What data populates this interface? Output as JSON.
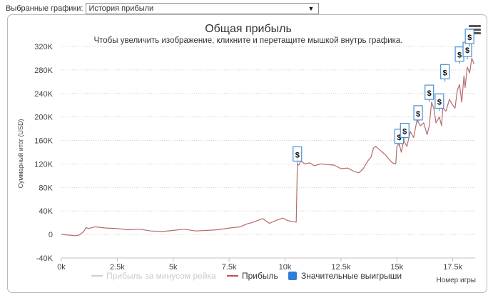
{
  "selector": {
    "label": "Выбранные графики:",
    "value": "История прибыли"
  },
  "chart_data": {
    "type": "line",
    "title": "Общая прибыль",
    "subtitle": "Чтобы увеличить изображение, кликните и перетащите мышкой внутрь графика.",
    "ylabel": "Суммарный итог (USD)",
    "xlabel": "Номер игры",
    "xlim": [
      0,
      18500
    ],
    "ylim": [
      -40000,
      320000
    ],
    "x_ticks": [
      0,
      2500,
      5000,
      7500,
      10000,
      12500,
      15000,
      17500
    ],
    "x_tick_labels": [
      "0k",
      "2.5k",
      "5k",
      "7.5k",
      "10k",
      "12.5k",
      "15k",
      "17.5k"
    ],
    "y_ticks": [
      -40000,
      0,
      40000,
      80000,
      120000,
      160000,
      200000,
      240000,
      280000,
      320000
    ],
    "y_tick_labels": [
      "-40K",
      "0",
      "40K",
      "80K",
      "120K",
      "160K",
      "200K",
      "240K",
      "280K",
      "320K"
    ],
    "grid": true,
    "legend_position": "bottom",
    "legend": [
      {
        "name": "Прибыль за минусом рейка",
        "color": "#cccccc",
        "hidden": true
      },
      {
        "name": "Прибыль",
        "color": "#c0504d"
      },
      {
        "name": "Значительные выигрыши",
        "color": "#2f7ed8"
      }
    ],
    "series": [
      {
        "name": "Прибыль",
        "color": "#b76b6b",
        "x": [
          0,
          300,
          600,
          800,
          1000,
          1100,
          1200,
          1500,
          2000,
          2500,
          3000,
          3500,
          4000,
          4500,
          5000,
          5500,
          6000,
          6500,
          7000,
          7500,
          8000,
          8300,
          8500,
          9000,
          9300,
          9600,
          9900,
          10100,
          10300,
          10500,
          10550,
          10620,
          10700,
          10900,
          11100,
          11300,
          11600,
          11900,
          12200,
          12500,
          12800,
          13100,
          13300,
          13500,
          13700,
          13850,
          13950,
          14050,
          14200,
          14350,
          14500,
          14650,
          14800,
          14950,
          15000,
          15100,
          15200,
          15300,
          15450,
          15600,
          15750,
          15900,
          16050,
          16200,
          16350,
          16450,
          16550,
          16650,
          16750,
          16900,
          17000,
          17050,
          17200,
          17350,
          17500,
          17600,
          17700,
          17800,
          17900,
          18000,
          18050,
          18150,
          18250,
          18350,
          18450
        ],
        "y": [
          0,
          -1000,
          -2000,
          -1000,
          5000,
          12000,
          10000,
          13000,
          11000,
          10000,
          8000,
          9000,
          6000,
          5000,
          7000,
          9000,
          6000,
          7000,
          8000,
          11000,
          13000,
          18000,
          20000,
          27000,
          19000,
          24000,
          28000,
          24000,
          22000,
          21000,
          120000,
          118000,
          125000,
          120000,
          122000,
          117000,
          120000,
          119000,
          118000,
          112000,
          113000,
          107000,
          105000,
          112000,
          125000,
          132000,
          147000,
          150000,
          145000,
          140000,
          135000,
          128000,
          122000,
          120000,
          150000,
          155000,
          140000,
          160000,
          150000,
          175000,
          165000,
          195000,
          185000,
          190000,
          170000,
          185000,
          225000,
          215000,
          190000,
          200000,
          185000,
          215000,
          210000,
          230000,
          220000,
          215000,
          245000,
          255000,
          225000,
          270000,
          250000,
          285000,
          275000,
          300000,
          290000
        ]
      }
    ],
    "markers": {
      "name": "Значительные выигрыши",
      "symbol": "$",
      "points": [
        {
          "x": 10550,
          "y": 120000
        },
        {
          "x": 15100,
          "y": 150000
        },
        {
          "x": 15350,
          "y": 160000
        },
        {
          "x": 15950,
          "y": 190000
        },
        {
          "x": 16450,
          "y": 225000
        },
        {
          "x": 16900,
          "y": 210000
        },
        {
          "x": 17150,
          "y": 260000
        },
        {
          "x": 17800,
          "y": 290000
        },
        {
          "x": 18150,
          "y": 298000
        },
        {
          "x": 18250,
          "y": 320000
        }
      ]
    }
  }
}
